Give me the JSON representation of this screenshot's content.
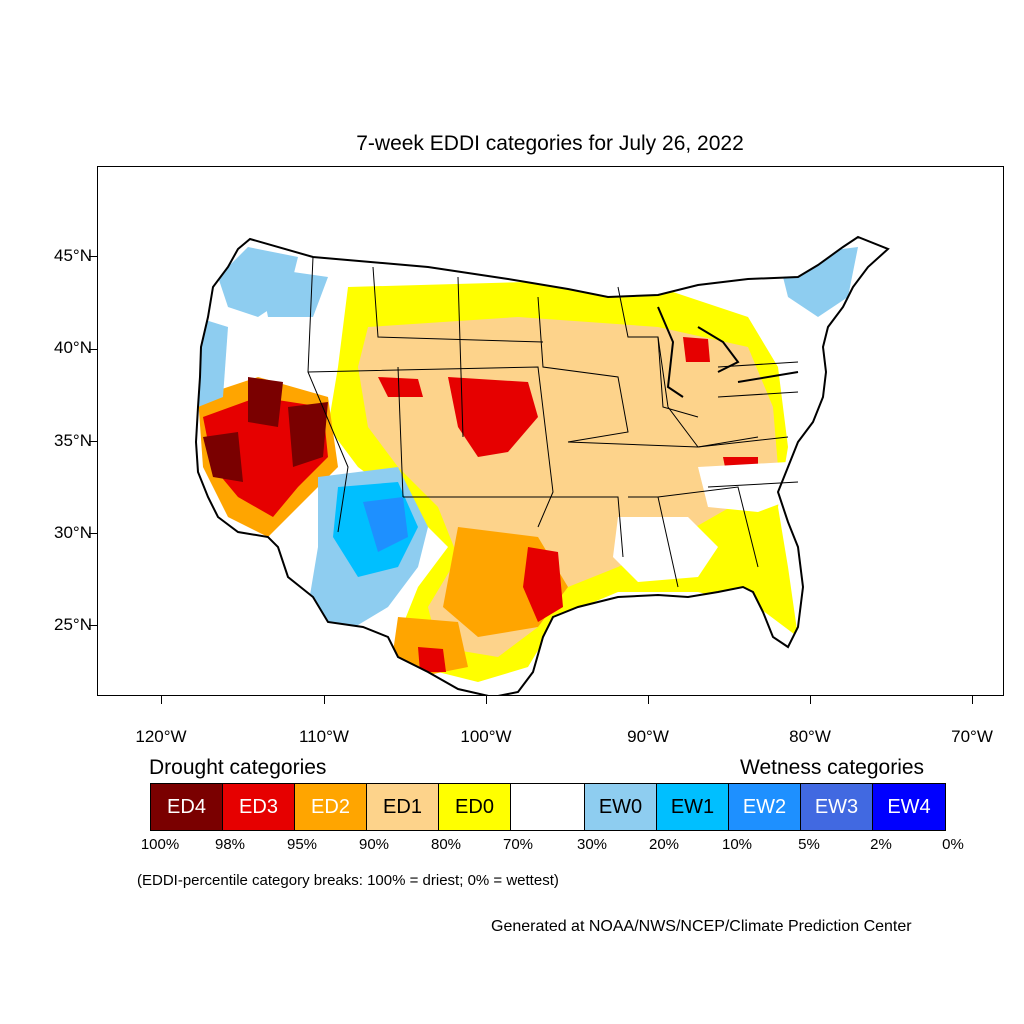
{
  "title": "7-week EDDI categories for July 26, 2022",
  "lat_labels": [
    "45°N",
    "40°N",
    "35°N",
    "30°N",
    "25°N"
  ],
  "lon_labels": [
    "120°W",
    "110°W",
    "100°W",
    "90°W",
    "80°W",
    "70°W"
  ],
  "drought_heading": "Drought categories",
  "wetness_heading": "Wetness categories",
  "legend": [
    {
      "label": "ED4",
      "color": "#7a0000",
      "text_color": "#ffffff"
    },
    {
      "label": "ED3",
      "color": "#e60000",
      "text_color": "#ffffff"
    },
    {
      "label": "ED2",
      "color": "#ffa500",
      "text_color": "#ffffff"
    },
    {
      "label": "ED1",
      "color": "#fdd38b",
      "text_color": "#000000"
    },
    {
      "label": "ED0",
      "color": "#ffff00",
      "text_color": "#000000"
    },
    {
      "label": "",
      "color": "#ffffff",
      "text_color": "#000000"
    },
    {
      "label": "EW0",
      "color": "#8ecdf0",
      "text_color": "#000000"
    },
    {
      "label": "EW1",
      "color": "#00bfff",
      "text_color": "#000000"
    },
    {
      "label": "EW2",
      "color": "#1e90ff",
      "text_color": "#ffffff"
    },
    {
      "label": "EW3",
      "color": "#4169e1",
      "text_color": "#ffffff"
    },
    {
      "label": "EW4",
      "color": "#0000ff",
      "text_color": "#ffffff"
    }
  ],
  "percentile_labels": [
    "100%",
    "98%",
    "95%",
    "90%",
    "80%",
    "70%",
    "30%",
    "20%",
    "10%",
    "5%",
    "2%",
    "0%"
  ],
  "footnote": "(EDDI-percentile category breaks: 100% = driest; 0% = wettest)",
  "credit": "Generated at NOAA/NWS/NCEP/Climate Prediction Center"
}
